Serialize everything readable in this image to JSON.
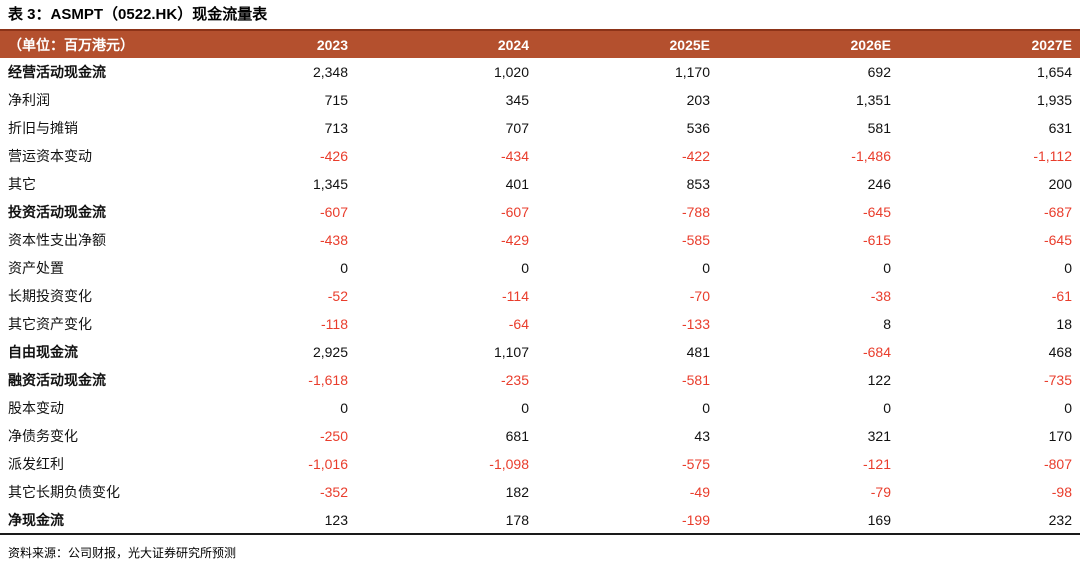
{
  "page": {
    "title": "表 3：ASMPT（0522.HK）现金流量表",
    "source_note": "资料来源：公司财报，光大证券研究所预测"
  },
  "colors": {
    "header_bg": "#b4502e",
    "header_top_border": "#8c3318",
    "negative_value": "#e93d2c",
    "text": "#111111"
  },
  "table": {
    "unit_label": "（单位：百万港元）",
    "columns": [
      "2023",
      "2024",
      "2025E",
      "2026E",
      "2027E"
    ],
    "rows": [
      {
        "label": "经营活动现金流",
        "bold": true,
        "values": [
          "2,348",
          "1,020",
          "1,170",
          "692",
          "1,654"
        ]
      },
      {
        "label": "净利润",
        "bold": false,
        "values": [
          "715",
          "345",
          "203",
          "1,351",
          "1,935"
        ]
      },
      {
        "label": "折旧与摊销",
        "bold": false,
        "values": [
          "713",
          "707",
          "536",
          "581",
          "631"
        ]
      },
      {
        "label": "营运资本变动",
        "bold": false,
        "values": [
          "-426",
          "-434",
          "-422",
          "-1,486",
          "-1,112"
        ]
      },
      {
        "label": "其它",
        "bold": false,
        "values": [
          "1,345",
          "401",
          "853",
          "246",
          "200"
        ]
      },
      {
        "label": "投资活动现金流",
        "bold": true,
        "values": [
          "-607",
          "-607",
          "-788",
          "-645",
          "-687"
        ]
      },
      {
        "label": "资本性支出净额",
        "bold": false,
        "values": [
          "-438",
          "-429",
          "-585",
          "-615",
          "-645"
        ]
      },
      {
        "label": "资产处置",
        "bold": false,
        "values": [
          "0",
          "0",
          "0",
          "0",
          "0"
        ]
      },
      {
        "label": "长期投资变化",
        "bold": false,
        "values": [
          "-52",
          "-114",
          "-70",
          "-38",
          "-61"
        ]
      },
      {
        "label": "其它资产变化",
        "bold": false,
        "values": [
          "-118",
          "-64",
          "-133",
          "8",
          "18"
        ]
      },
      {
        "label": "自由现金流",
        "bold": true,
        "values": [
          "2,925",
          "1,107",
          "481",
          "-684",
          "468"
        ]
      },
      {
        "label": "融资活动现金流",
        "bold": true,
        "values": [
          "-1,618",
          "-235",
          "-581",
          "122",
          "-735"
        ]
      },
      {
        "label": "股本变动",
        "bold": false,
        "values": [
          "0",
          "0",
          "0",
          "0",
          "0"
        ]
      },
      {
        "label": "净债务变化",
        "bold": false,
        "values": [
          "-250",
          "681",
          "43",
          "321",
          "170"
        ]
      },
      {
        "label": "派发红利",
        "bold": false,
        "values": [
          "-1,016",
          "-1,098",
          "-575",
          "-121",
          "-807"
        ]
      },
      {
        "label": "其它长期负债变化",
        "bold": false,
        "values": [
          "-352",
          "182",
          "-49",
          "-79",
          "-98"
        ]
      },
      {
        "label": "净现金流",
        "bold": true,
        "values": [
          "123",
          "178",
          "-199",
          "169",
          "232"
        ]
      }
    ]
  }
}
